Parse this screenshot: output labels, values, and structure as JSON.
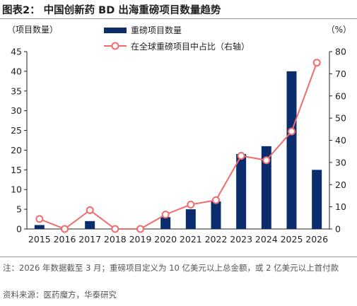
{
  "title": "图表2：  中国创新药 BD 出海重磅项目数量趋势",
  "note": "注：2026 年数据截至 3 月；重磅项目定义为 10 亿美元以上总金额，或 2 亿美元以上首付款",
  "source": "资料来源：医药魔方，华泰研究",
  "colors": {
    "bar": "#0b2d6e",
    "line": "#f26b6b",
    "marker_fill": "#ffffff",
    "axis": "#222222"
  },
  "chart_data": {
    "type": "bar+line",
    "categories": [
      "2015",
      "2016",
      "2017",
      "2018",
      "2019",
      "2020",
      "2021",
      "2022",
      "2023",
      "2024",
      "2025",
      "2026"
    ],
    "series": [
      {
        "name": "重磅项目数量",
        "type": "bar",
        "axis": "left",
        "values": [
          1,
          0,
          2,
          0,
          0,
          3,
          5,
          7,
          19,
          21,
          40,
          15
        ]
      },
      {
        "name": "在全球重磅项目中占比（右轴）",
        "type": "line",
        "axis": "right",
        "values": [
          4.5,
          0,
          8.5,
          0,
          0,
          6.5,
          11,
          13,
          33,
          31,
          44,
          75
        ]
      }
    ],
    "left_axis": {
      "unit_label": "（项目数量）",
      "min": 0,
      "max": 45,
      "ticks": [
        0,
        5,
        10,
        15,
        20,
        25,
        30,
        35,
        40,
        45
      ]
    },
    "right_axis": {
      "unit_label": "（%）",
      "min": 0,
      "max": 80,
      "ticks": [
        0,
        10,
        20,
        30,
        40,
        50,
        60,
        70,
        80
      ]
    },
    "legend_position": "top-center",
    "grid": false
  }
}
